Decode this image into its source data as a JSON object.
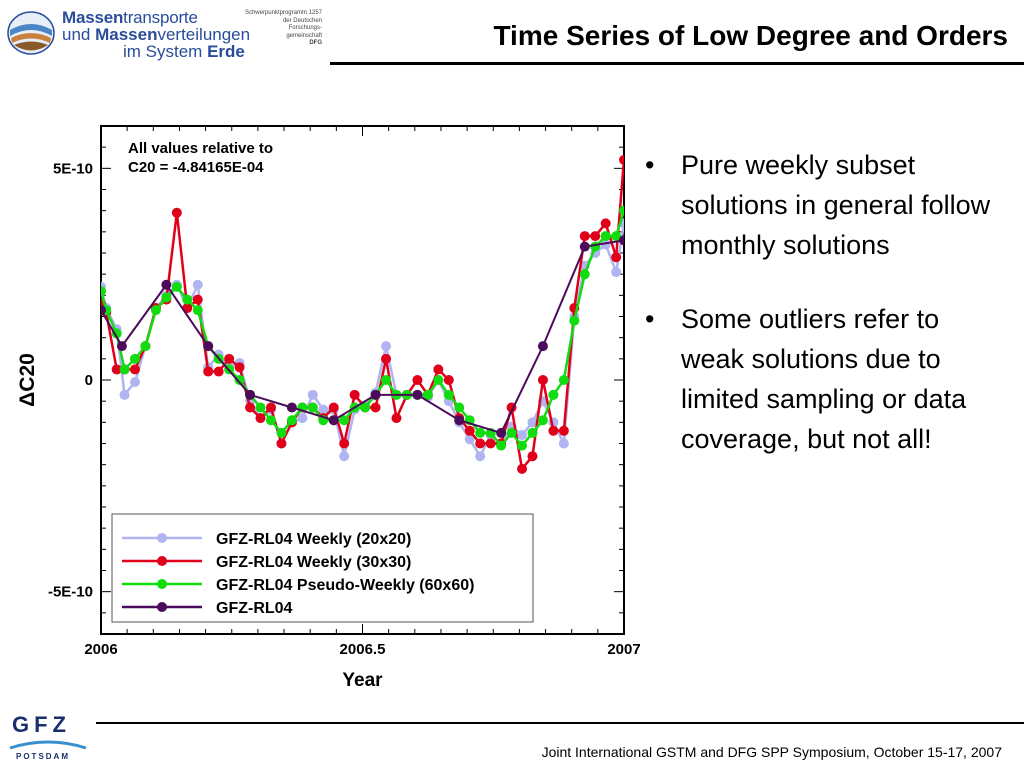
{
  "header": {
    "logo": {
      "line1_bold": "Massen",
      "line1_rest": "transporte",
      "line2_pre": "und ",
      "line2_bold": "Massen",
      "line2_rest": "verteilungen",
      "line3_pre": "im System ",
      "line3_bold": "Erde",
      "small_lines": [
        "Schwerpunktprogramm 1257",
        "der Deutschen",
        "Forschungs-",
        "gemeinschaft",
        "DFG"
      ]
    },
    "title": "Time Series of Low Degree and Orders"
  },
  "bullets": [
    "Pure weekly subset solutions in general follow monthly solutions",
    "Some outliers refer to weak solutions due to limited sampling or data coverage, but not all!"
  ],
  "footer": {
    "text": "Joint International GSTM and DFG SPP Symposium, October 15-17, 2007",
    "gfz_letters": "GFZ",
    "gfz_potsdam": "POTSDAM"
  },
  "chart_data": {
    "type": "line",
    "xlabel": "Year",
    "ylabel": "ΔC20",
    "xlim": [
      2006.0,
      2007.0
    ],
    "ylim": [
      -6e-10,
      6e-10
    ],
    "x_ticks": [
      {
        "value": 2006.0,
        "label": "2006"
      },
      {
        "value": 2006.5,
        "label": "2006.5"
      },
      {
        "value": 2007.0,
        "label": "2007"
      }
    ],
    "y_ticks": [
      {
        "value": 5e-10,
        "label": "5E-10"
      },
      {
        "value": 0,
        "label": "0"
      },
      {
        "value": -5e-10,
        "label": "-5E-10"
      }
    ],
    "annotation": {
      "line1": "All values relative to",
      "line2": "C20 = -4.84165E-04"
    },
    "legend_position": "bottom-left",
    "series": [
      {
        "name": "GFZ-RL04 Weekly (20x20)",
        "color": "#b0b4f0",
        "points": [
          [
            2006.0,
            2.2e-10
          ],
          [
            2006.01,
            1.7e-10
          ],
          [
            2006.03,
            1.2e-10
          ],
          [
            2006.045,
            -3.5e-11
          ],
          [
            2006.065,
            -5e-12
          ],
          [
            2006.085,
            8e-11
          ],
          [
            2006.105,
            1.7e-10
          ],
          [
            2006.125,
            2e-10
          ],
          [
            2006.145,
            2.25e-10
          ],
          [
            2006.165,
            1.7e-10
          ],
          [
            2006.185,
            2.25e-10
          ],
          [
            2006.205,
            3e-11
          ],
          [
            2006.225,
            6e-11
          ],
          [
            2006.245,
            3e-11
          ],
          [
            2006.265,
            4e-11
          ],
          [
            2006.285,
            -5e-11
          ],
          [
            2006.305,
            -9e-11
          ],
          [
            2006.325,
            -7e-11
          ],
          [
            2006.345,
            -1.5e-10
          ],
          [
            2006.365,
            -1e-10
          ],
          [
            2006.385,
            -9e-11
          ],
          [
            2006.405,
            -3.5e-11
          ],
          [
            2006.425,
            -7e-11
          ],
          [
            2006.445,
            -7e-11
          ],
          [
            2006.465,
            -1.8e-10
          ],
          [
            2006.485,
            -7e-11
          ],
          [
            2006.505,
            -6e-11
          ],
          [
            2006.525,
            -3e-11
          ],
          [
            2006.545,
            8e-11
          ],
          [
            2006.565,
            -3.5e-11
          ],
          [
            2006.585,
            -3.5e-11
          ],
          [
            2006.605,
            -3.5e-11
          ],
          [
            2006.625,
            -4e-11
          ],
          [
            2006.645,
            0.0
          ],
          [
            2006.665,
            -5e-11
          ],
          [
            2006.685,
            -1e-10
          ],
          [
            2006.705,
            -1.4e-10
          ],
          [
            2006.725,
            -1.8e-10
          ],
          [
            2006.745,
            -1.3e-10
          ],
          [
            2006.765,
            -1.5e-10
          ],
          [
            2006.785,
            -1.1e-10
          ],
          [
            2006.805,
            -1.3e-10
          ],
          [
            2006.825,
            -1e-10
          ],
          [
            2006.845,
            -5e-11
          ],
          [
            2006.865,
            -1e-10
          ],
          [
            2006.885,
            -1.5e-10
          ],
          [
            2006.905,
            1.5e-10
          ],
          [
            2006.925,
            2.7e-10
          ],
          [
            2006.945,
            3e-10
          ],
          [
            2006.965,
            3.2e-10
          ],
          [
            2006.985,
            2.55e-10
          ],
          [
            2007.0,
            3.7e-10
          ]
        ]
      },
      {
        "name": "GFZ-RL04 Weekly (30x30)",
        "color": "#e0001a",
        "points": [
          [
            2006.0,
            1.8e-10
          ],
          [
            2006.01,
            1.6e-10
          ],
          [
            2006.03,
            2.5e-11
          ],
          [
            2006.045,
            2.5e-11
          ],
          [
            2006.065,
            2.5e-11
          ],
          [
            2006.085,
            8e-11
          ],
          [
            2006.105,
            1.7e-10
          ],
          [
            2006.125,
            1.9e-10
          ],
          [
            2006.145,
            3.95e-10
          ],
          [
            2006.165,
            1.7e-10
          ],
          [
            2006.185,
            1.9e-10
          ],
          [
            2006.205,
            2e-11
          ],
          [
            2006.225,
            2e-11
          ],
          [
            2006.245,
            5e-11
          ],
          [
            2006.265,
            3e-11
          ],
          [
            2006.285,
            -6.5e-11
          ],
          [
            2006.305,
            -9e-11
          ],
          [
            2006.325,
            -6.5e-11
          ],
          [
            2006.345,
            -1.5e-10
          ],
          [
            2006.365,
            -1e-10
          ],
          [
            2006.385,
            -6.5e-11
          ],
          [
            2006.405,
            -6.5e-11
          ],
          [
            2006.425,
            -9e-11
          ],
          [
            2006.445,
            -6.5e-11
          ],
          [
            2006.465,
            -1.5e-10
          ],
          [
            2006.485,
            -3.5e-11
          ],
          [
            2006.505,
            -6.5e-11
          ],
          [
            2006.525,
            -6.5e-11
          ],
          [
            2006.545,
            5e-11
          ],
          [
            2006.565,
            -9e-11
          ],
          [
            2006.585,
            -3.5e-11
          ],
          [
            2006.605,
            0.0
          ],
          [
            2006.625,
            -3.5e-11
          ],
          [
            2006.645,
            2.5e-11
          ],
          [
            2006.665,
            0.0
          ],
          [
            2006.685,
            -9e-11
          ],
          [
            2006.705,
            -1.2e-10
          ],
          [
            2006.725,
            -1.5e-10
          ],
          [
            2006.745,
            -1.5e-10
          ],
          [
            2006.765,
            -1.5e-10
          ],
          [
            2006.785,
            -6.5e-11
          ],
          [
            2006.805,
            -2.1e-10
          ],
          [
            2006.825,
            -1.8e-10
          ],
          [
            2006.845,
            0.0
          ],
          [
            2006.865,
            -1.2e-10
          ],
          [
            2006.885,
            -1.2e-10
          ],
          [
            2006.905,
            1.7e-10
          ],
          [
            2006.925,
            3.4e-10
          ],
          [
            2006.945,
            3.4e-10
          ],
          [
            2006.965,
            3.7e-10
          ],
          [
            2006.985,
            2.9e-10
          ],
          [
            2007.0,
            5.2e-10
          ]
        ]
      },
      {
        "name": "GFZ-RL04 Pseudo-Weekly (60x60)",
        "color": "#10dc10",
        "points": [
          [
            2006.0,
            2.1e-10
          ],
          [
            2006.01,
            1.65e-10
          ],
          [
            2006.03,
            1.1e-10
          ],
          [
            2006.045,
            2.5e-11
          ],
          [
            2006.065,
            5e-11
          ],
          [
            2006.085,
            8e-11
          ],
          [
            2006.105,
            1.65e-10
          ],
          [
            2006.125,
            1.95e-10
          ],
          [
            2006.145,
            2.2e-10
          ],
          [
            2006.165,
            1.9e-10
          ],
          [
            2006.185,
            1.65e-10
          ],
          [
            2006.205,
            8e-11
          ],
          [
            2006.225,
            5e-11
          ],
          [
            2006.245,
            2.5e-11
          ],
          [
            2006.265,
            0.0
          ],
          [
            2006.285,
            -3.5e-11
          ],
          [
            2006.305,
            -6.5e-11
          ],
          [
            2006.325,
            -9.5e-11
          ],
          [
            2006.345,
            -1.25e-10
          ],
          [
            2006.365,
            -9.5e-11
          ],
          [
            2006.385,
            -6.5e-11
          ],
          [
            2006.405,
            -6.5e-11
          ],
          [
            2006.425,
            -9.5e-11
          ],
          [
            2006.445,
            -9.5e-11
          ],
          [
            2006.465,
            -9.5e-11
          ],
          [
            2006.485,
            -6.5e-11
          ],
          [
            2006.505,
            -6.5e-11
          ],
          [
            2006.525,
            -3.5e-11
          ],
          [
            2006.545,
            0.0
          ],
          [
            2006.565,
            -3.5e-11
          ],
          [
            2006.585,
            -3.5e-11
          ],
          [
            2006.605,
            -3.5e-11
          ],
          [
            2006.625,
            -3.5e-11
          ],
          [
            2006.645,
            0.0
          ],
          [
            2006.665,
            -3.5e-11
          ],
          [
            2006.685,
            -6.5e-11
          ],
          [
            2006.705,
            -9.5e-11
          ],
          [
            2006.725,
            -1.25e-10
          ],
          [
            2006.745,
            -1.25e-10
          ],
          [
            2006.765,
            -1.55e-10
          ],
          [
            2006.785,
            -1.25e-10
          ],
          [
            2006.805,
            -1.55e-10
          ],
          [
            2006.825,
            -1.25e-10
          ],
          [
            2006.845,
            -9.5e-11
          ],
          [
            2006.865,
            -3.5e-11
          ],
          [
            2006.885,
            0.0
          ],
          [
            2006.905,
            1.4e-10
          ],
          [
            2006.925,
            2.5e-10
          ],
          [
            2006.945,
            3.15e-10
          ],
          [
            2006.965,
            3.4e-10
          ],
          [
            2006.985,
            3.4e-10
          ],
          [
            2007.0,
            4e-10
          ]
        ]
      },
      {
        "name": "GFZ-RL04",
        "color": "#4b0a5a",
        "points": [
          [
            2006.0,
            1.65e-10
          ],
          [
            2006.04,
            8e-11
          ],
          [
            2006.125,
            2.25e-10
          ],
          [
            2006.205,
            8e-11
          ],
          [
            2006.285,
            -3.5e-11
          ],
          [
            2006.365,
            -6.5e-11
          ],
          [
            2006.445,
            -9.5e-11
          ],
          [
            2006.525,
            -3.5e-11
          ],
          [
            2006.605,
            -3.5e-11
          ],
          [
            2006.685,
            -9.5e-11
          ],
          [
            2006.765,
            -1.25e-10
          ],
          [
            2006.845,
            8e-11
          ],
          [
            2006.925,
            3.15e-10
          ],
          [
            2007.0,
            3.3e-10
          ]
        ]
      }
    ]
  }
}
